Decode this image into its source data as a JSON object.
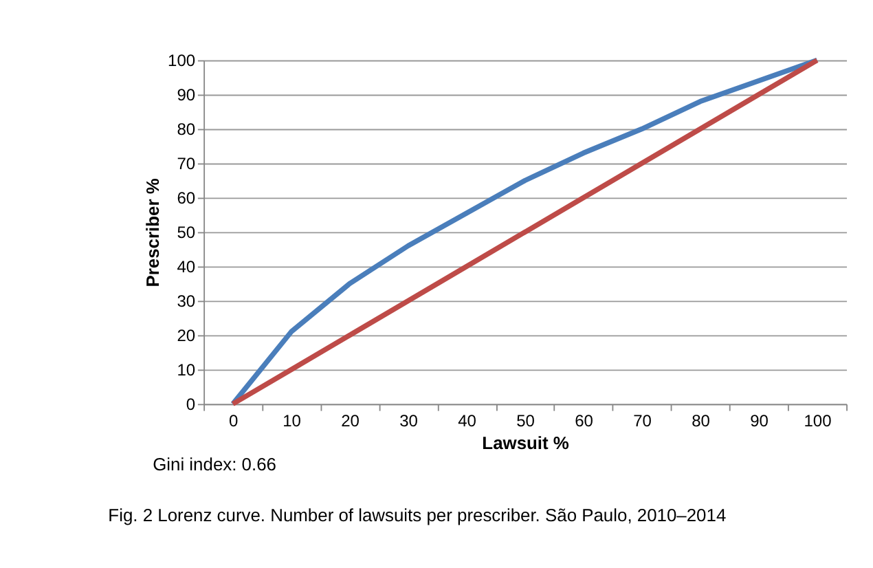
{
  "chart_data": {
    "type": "line",
    "xlabel": "Lawsuit %",
    "ylabel": "Prescriber %",
    "categories": [
      "0",
      "10",
      "20",
      "30",
      "40",
      "50",
      "60",
      "70",
      "80",
      "90",
      "100"
    ],
    "series": [
      {
        "color": "#4a7ebb",
        "values": [
          0,
          21,
          35,
          46,
          55.5,
          65,
          73,
          80,
          88,
          94,
          100
        ]
      },
      {
        "color": "#be4b48",
        "values": [
          0,
          10,
          20,
          30,
          40,
          50,
          60,
          70,
          80,
          90,
          100
        ]
      }
    ],
    "ylim": [
      0,
      100
    ],
    "yticks": [
      0,
      10,
      20,
      30,
      40,
      50,
      60,
      70,
      80,
      90,
      100
    ],
    "grid": "y",
    "legend": false,
    "marker": "none",
    "line_style": "solid",
    "annotations": [
      "Gini index: 0.66",
      "Fig. 2 Lorenz curve. Number of lawsuits per prescriber. São Paulo, 2010–2014"
    ]
  }
}
